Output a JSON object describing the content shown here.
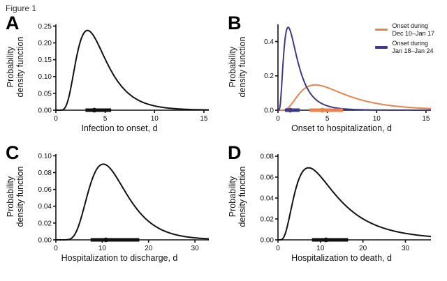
{
  "figure_label": "Figure 1",
  "colors": {
    "curve_black": "#111111",
    "orange": "#E8824E",
    "navy": "#3D3A87"
  },
  "chart_data": [
    {
      "panel": "A",
      "type": "line",
      "xlabel": "Infection to onset, d",
      "ylabel": "Probability\ndensity function",
      "xlim": [
        0,
        15.5
      ],
      "ylim": [
        0,
        0.255
      ],
      "xticks": [
        0,
        5,
        10,
        15
      ],
      "yticks": [
        0,
        0.05,
        0.1,
        0.15,
        0.2,
        0.25
      ],
      "ytick_labels": [
        "0.00",
        "0.05",
        "0.10",
        "0.15",
        "0.20",
        "0.25"
      ],
      "grid": false,
      "series": [
        {
          "name": "Infection to onset",
          "color": "#111111",
          "dist": "lognormal",
          "mu": 1.386,
          "sigma": 0.47,
          "peak_x": 3.4,
          "peak_y": 0.23
        }
      ],
      "markers": [
        {
          "color": "#111111",
          "lo": 3.0,
          "hi": 5.6,
          "center": 3.9
        }
      ]
    },
    {
      "panel": "B",
      "type": "line",
      "xlabel": "Onset to hospitalization, d",
      "ylabel": "Probability\ndensity function",
      "xlim": [
        0,
        15.5
      ],
      "ylim": [
        0,
        0.5
      ],
      "xticks": [
        0,
        5,
        10,
        15
      ],
      "yticks": [
        0,
        0.2,
        0.4
      ],
      "ytick_labels": [
        "0.0",
        "0.2",
        "0.4"
      ],
      "grid": false,
      "legend_position": "upper right",
      "series": [
        {
          "name": "Onset during Dec 10–Jan 17",
          "color": "#E8824E",
          "dist": "lognormal",
          "mu": 1.6864,
          "sigma": 0.6,
          "peak_x": 3.8,
          "peak_y": 0.15
        },
        {
          "name": "Onset during Jan 18–Jan 24",
          "color": "#3D3A87",
          "dist": "lognormal",
          "mu": 0.45,
          "sigma": 0.65,
          "peak_x": 1.0,
          "peak_y": 0.47
        }
      ],
      "legend": [
        {
          "label": "Onset during\nDec 10–Jan 17",
          "color": "#E8824E"
        },
        {
          "label": "Onset during\nJan 18–Jan 24",
          "color": "#3D3A87"
        }
      ],
      "markers": [
        {
          "color": "#3D3A87",
          "lo": 0.7,
          "hi": 2.2,
          "center": 1.25
        },
        {
          "color": "#E8824E",
          "lo": 3.2,
          "hi": 6.6,
          "center": 4.5
        }
      ]
    },
    {
      "panel": "C",
      "type": "line",
      "xlabel": "Hospitalization to discharge, d",
      "ylabel": "Probability\ndensity function",
      "xlim": [
        0,
        33
      ],
      "ylim": [
        0,
        0.102
      ],
      "xticks": [
        0,
        10,
        20,
        30
      ],
      "yticks": [
        0,
        0.02,
        0.04,
        0.06,
        0.08,
        0.1
      ],
      "ytick_labels": [
        "0.00",
        "0.02",
        "0.04",
        "0.06",
        "0.08",
        "0.10"
      ],
      "grid": false,
      "series": [
        {
          "name": "Hospitalization to discharge",
          "color": "#111111",
          "dist": "lognormal",
          "mu": 2.4849,
          "sigma": 0.4,
          "peak_x": 10.2,
          "peak_y": 0.09
        }
      ],
      "markers": [
        {
          "color": "#111111",
          "lo": 7.5,
          "hi": 18.0,
          "center": 10.8
        }
      ]
    },
    {
      "panel": "D",
      "type": "line",
      "xlabel": "Hospitalization to death, d",
      "ylabel": "Probability\ndensity function",
      "xlim": [
        0,
        36
      ],
      "ylim": [
        0,
        0.082
      ],
      "xticks": [
        0,
        10,
        20,
        30
      ],
      "yticks": [
        0,
        0.02,
        0.04,
        0.06,
        0.08
      ],
      "ytick_labels": [
        "0.00",
        "0.02",
        "0.04",
        "0.06",
        "0.08"
      ],
      "grid": false,
      "series": [
        {
          "name": "Hospitalization to death",
          "color": "#111111",
          "dist": "lognormal",
          "mu": 2.398,
          "sigma": 0.65,
          "peak_x": 7.2,
          "peak_y": 0.068
        }
      ],
      "markers": [
        {
          "color": "#111111",
          "lo": 8.0,
          "hi": 16.5,
          "center": 11.3
        }
      ]
    }
  ]
}
